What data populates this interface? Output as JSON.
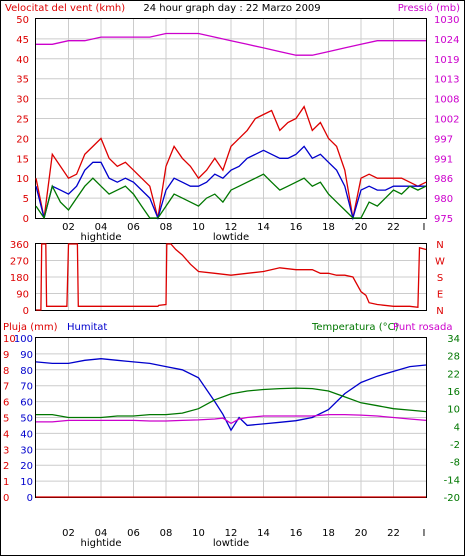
{
  "title": "24 hour graph day : 22 Marzo 2009",
  "colors": {
    "red": "#dd0000",
    "blue": "#0000cc",
    "green": "#007700",
    "magenta": "#cc00cc",
    "grid": "#cccccc",
    "frame": "#000000"
  },
  "chart_data": [
    {
      "name": "wind",
      "type": "line",
      "left_label": "Velocitat del vent (kmh)",
      "right_label": "Pressió (mb)",
      "left_ticks": [
        "50",
        "45",
        "40",
        "35",
        "30",
        "25",
        "20",
        "15",
        "10",
        "5",
        "0"
      ],
      "right_ticks": [
        "1030",
        "1024",
        "1019",
        "1013",
        "1008",
        "1002",
        "997",
        "991",
        "986",
        "980",
        "975"
      ],
      "ylim": [
        0,
        50
      ],
      "y2lim": [
        975,
        1030
      ],
      "x_ticks": [
        "02",
        "04",
        "06",
        "08",
        "10",
        "12",
        "14",
        "16",
        "18",
        "20",
        "22"
      ],
      "x_end_label": "I",
      "tide_labels": [
        {
          "x": 4,
          "text": "hightide"
        },
        {
          "x": 12,
          "text": "lowtide"
        }
      ],
      "series": [
        {
          "key": "gust",
          "color": "red",
          "x": [
            0,
            0.5,
            1,
            1.5,
            2,
            2.5,
            3,
            3.5,
            4,
            4.5,
            5,
            5.5,
            6,
            6.5,
            7,
            7.5,
            8,
            8.5,
            9,
            9.5,
            10,
            10.5,
            11,
            11.5,
            12,
            12.5,
            13,
            13.5,
            14,
            14.5,
            15,
            15.5,
            16,
            16.5,
            17,
            17.5,
            18,
            18.5,
            19,
            19.5,
            20,
            20.5,
            21,
            21.5,
            22,
            22.5,
            23,
            23.5,
            24
          ],
          "values": [
            10,
            0,
            16,
            13,
            10,
            11,
            16,
            18,
            20,
            15,
            13,
            14,
            12,
            10,
            8,
            0,
            13,
            18,
            15,
            13,
            10,
            12,
            15,
            12,
            18,
            20,
            22,
            25,
            26,
            27,
            22,
            24,
            25,
            28,
            22,
            24,
            20,
            18,
            12,
            0,
            10,
            11,
            10,
            10,
            10,
            10,
            9,
            8,
            9
          ]
        },
        {
          "key": "avg",
          "color": "blue",
          "x": [
            0,
            0.5,
            1,
            1.5,
            2,
            2.5,
            3,
            3.5,
            4,
            4.5,
            5,
            5.5,
            6,
            6.5,
            7,
            7.5,
            8,
            8.5,
            9,
            9.5,
            10,
            10.5,
            11,
            11.5,
            12,
            12.5,
            13,
            13.5,
            14,
            14.5,
            15,
            15.5,
            16,
            16.5,
            17,
            17.5,
            18,
            18.5,
            19,
            19.5,
            20,
            20.5,
            21,
            21.5,
            22,
            22.5,
            23,
            23.5,
            24
          ],
          "values": [
            8,
            0,
            8,
            7,
            6,
            8,
            12,
            14,
            14,
            10,
            9,
            10,
            9,
            7,
            5,
            0,
            7,
            10,
            9,
            8,
            8,
            9,
            11,
            10,
            12,
            13,
            15,
            16,
            17,
            16,
            15,
            15,
            16,
            18,
            15,
            16,
            14,
            12,
            8,
            0,
            7,
            8,
            7,
            7,
            8,
            8,
            8,
            8,
            8
          ]
        },
        {
          "key": "calm",
          "color": "green",
          "x": [
            0,
            0.5,
            1,
            1.5,
            2,
            2.5,
            3,
            3.5,
            4,
            4.5,
            5,
            5.5,
            6,
            6.5,
            7,
            7.5,
            8,
            8.5,
            9,
            9.5,
            10,
            10.5,
            11,
            11.5,
            12,
            12.5,
            13,
            13.5,
            14,
            14.5,
            15,
            15.5,
            16,
            16.5,
            17,
            17.5,
            18,
            18.5,
            19,
            19.5,
            20,
            20.5,
            21,
            21.5,
            22,
            22.5,
            23,
            23.5,
            24
          ],
          "values": [
            3,
            0,
            8,
            4,
            2,
            5,
            8,
            10,
            8,
            6,
            7,
            8,
            6,
            3,
            0,
            0,
            3,
            6,
            5,
            4,
            3,
            5,
            6,
            4,
            7,
            8,
            9,
            10,
            11,
            9,
            7,
            8,
            9,
            10,
            8,
            9,
            6,
            4,
            2,
            0,
            0,
            4,
            3,
            5,
            7,
            6,
            8,
            7,
            8
          ]
        },
        {
          "key": "pressure",
          "color": "magenta",
          "axis": "right",
          "x": [
            0,
            1,
            2,
            3,
            4,
            5,
            6,
            7,
            8,
            9,
            10,
            11,
            12,
            13,
            14,
            15,
            16,
            17,
            18,
            19,
            20,
            21,
            22,
            23,
            24
          ],
          "values": [
            1023,
            1023,
            1024,
            1024,
            1025,
            1025,
            1025,
            1025,
            1026,
            1026,
            1026,
            1025,
            1024,
            1023,
            1022,
            1021,
            1020,
            1020,
            1021,
            1022,
            1023,
            1024,
            1024,
            1024,
            1024
          ]
        }
      ]
    },
    {
      "name": "direction",
      "type": "line",
      "left_ticks": [
        "360",
        "270",
        "180",
        "90",
        "0"
      ],
      "right_ticks": [
        "N",
        "W",
        "S",
        "E",
        "N"
      ],
      "ylim": [
        0,
        360
      ],
      "series": [
        {
          "key": "dir",
          "color": "red",
          "x": [
            0,
            0.3,
            0.35,
            0.6,
            0.65,
            1.9,
            2.0,
            2.55,
            2.6,
            7.5,
            7.55,
            8.0,
            8.05,
            8.3,
            8.6,
            9.0,
            9.5,
            10,
            11,
            12,
            13,
            14,
            15,
            16,
            17,
            17.5,
            18,
            18.5,
            19,
            19.5,
            20,
            20.3,
            20.5,
            21,
            22,
            23,
            23.5,
            23.6,
            24
          ],
          "values": [
            0,
            0,
            360,
            360,
            20,
            20,
            360,
            360,
            20,
            20,
            25,
            30,
            360,
            360,
            330,
            300,
            250,
            210,
            200,
            190,
            200,
            210,
            230,
            220,
            220,
            200,
            200,
            190,
            190,
            180,
            100,
            80,
            40,
            30,
            20,
            20,
            15,
            340,
            330
          ]
        }
      ]
    },
    {
      "name": "temp_hum",
      "type": "line",
      "left_label_1": "Pluja (mm)",
      "left_label_2": "Humitat",
      "right_label_1": "Temperatura (°C)",
      "right_label_2": "Punt rosada",
      "left_ticks_rain": [
        "10",
        "9",
        "8",
        "7",
        "6",
        "5",
        "4",
        "3",
        "2",
        "1",
        "0"
      ],
      "left_ticks_hum": [
        "100",
        "90",
        "80",
        "70",
        "60",
        "50",
        "40",
        "30",
        "20",
        "10",
        "0"
      ],
      "right_ticks": [
        "34",
        "28",
        "22",
        "16",
        "10",
        "4",
        "-2",
        "-8",
        "-14",
        "-20"
      ],
      "ylim": [
        0,
        100
      ],
      "y2lim": [
        -20,
        34
      ],
      "x_ticks": [
        "02",
        "04",
        "06",
        "08",
        "10",
        "12",
        "14",
        "16",
        "18",
        "20",
        "22"
      ],
      "x_end_label": "I",
      "tide_labels": [
        {
          "x": 4,
          "text": "hightide"
        },
        {
          "x": 12,
          "text": "lowtide"
        }
      ],
      "series": [
        {
          "key": "humidity",
          "color": "blue",
          "x": [
            0,
            1,
            2,
            3,
            4,
            5,
            6,
            7,
            8,
            9,
            10,
            11,
            11.5,
            12,
            12.5,
            13,
            14,
            15,
            16,
            17,
            18,
            19,
            20,
            21,
            22,
            23,
            24
          ],
          "values": [
            85,
            84,
            84,
            86,
            87,
            86,
            85,
            84,
            82,
            80,
            75,
            60,
            52,
            42,
            50,
            45,
            46,
            47,
            48,
            50,
            55,
            65,
            72,
            76,
            79,
            82,
            83
          ]
        },
        {
          "key": "temperature",
          "color": "green",
          "axis": "right",
          "x": [
            0,
            1,
            2,
            3,
            4,
            5,
            6,
            7,
            8,
            9,
            10,
            11,
            12,
            13,
            14,
            15,
            16,
            17,
            18,
            19,
            20,
            21,
            22,
            23,
            24
          ],
          "values": [
            8,
            8,
            7,
            7,
            7,
            7.5,
            7.5,
            8,
            8,
            8.5,
            10,
            13,
            15,
            16,
            16.5,
            16.8,
            17,
            16.8,
            16,
            14,
            12,
            11,
            10,
            9.5,
            9
          ]
        },
        {
          "key": "dewpoint",
          "color": "magenta",
          "axis": "right",
          "x": [
            0,
            1,
            2,
            3,
            4,
            5,
            6,
            7,
            8,
            9,
            10,
            11,
            11.5,
            12,
            12.5,
            13,
            14,
            15,
            16,
            17,
            18,
            19,
            20,
            21,
            22,
            23,
            24
          ],
          "values": [
            5.5,
            5.5,
            6,
            6,
            6,
            6,
            6,
            5.8,
            5.8,
            6,
            6.2,
            6.5,
            6.8,
            5,
            6.5,
            7,
            7.5,
            7.5,
            7.5,
            7.5,
            8,
            8,
            7.8,
            7.5,
            7,
            6.5,
            6
          ]
        },
        {
          "key": "rain",
          "color": "red",
          "axis": "rain",
          "x": [
            0,
            24
          ],
          "values": [
            0,
            0
          ]
        }
      ]
    }
  ]
}
